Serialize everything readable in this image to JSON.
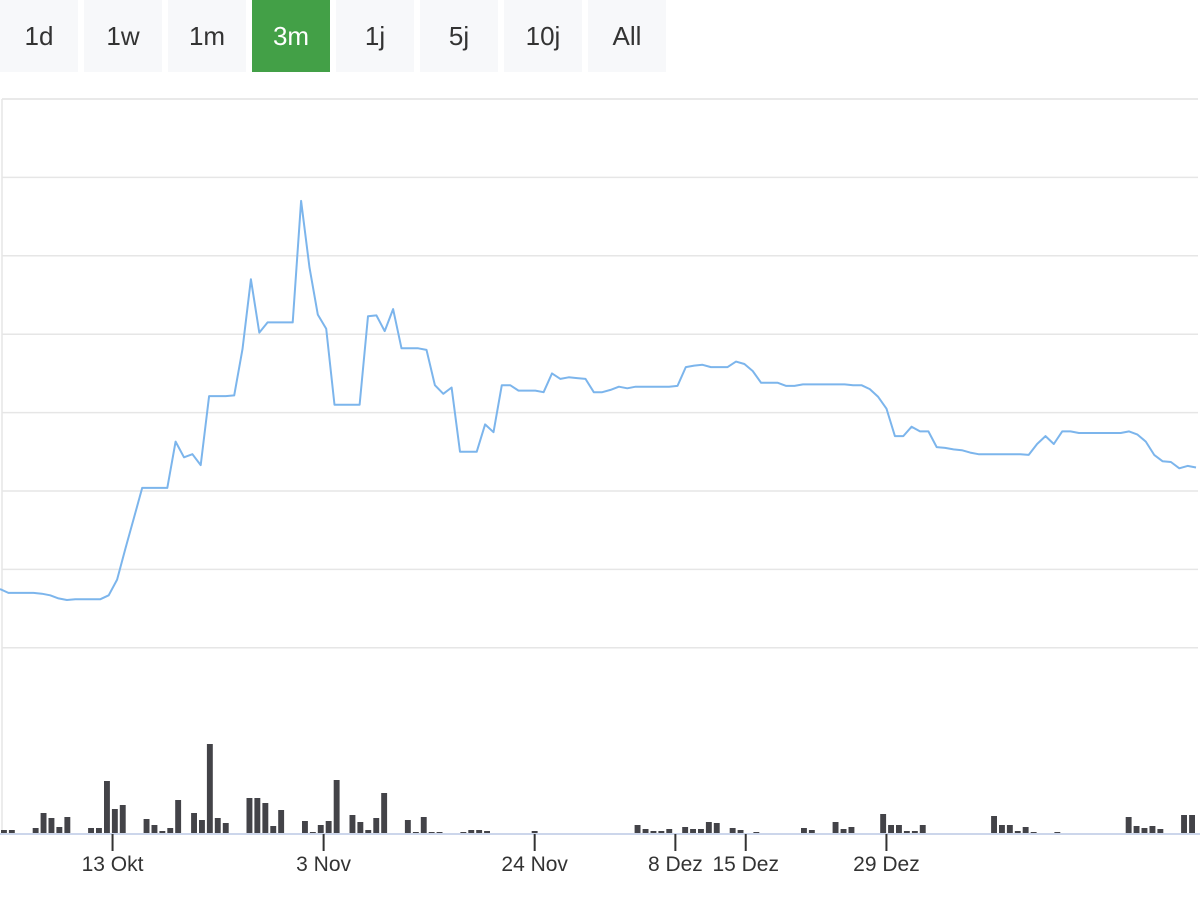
{
  "range_selector": {
    "buttons": [
      {
        "label": "1d",
        "active": false
      },
      {
        "label": "1w",
        "active": false
      },
      {
        "label": "1m",
        "active": false
      },
      {
        "label": "3m",
        "active": true
      },
      {
        "label": "1j",
        "active": false
      },
      {
        "label": "5j",
        "active": false
      },
      {
        "label": "10j",
        "active": false
      },
      {
        "label": "All",
        "active": false
      }
    ],
    "active_color": "#43a047"
  },
  "chart_data": {
    "type": "line",
    "title": "",
    "xlabel": "",
    "ylabel": "",
    "grid": true,
    "line_color": "#7cb5ec",
    "volume_color": "#434348",
    "x_ticks": [
      {
        "label": "13 Okt",
        "day": 11
      },
      {
        "label": "3 Nov",
        "day": 32
      },
      {
        "label": "24 Nov",
        "day": 53
      },
      {
        "label": "8 Dez",
        "day": 67
      },
      {
        "label": "15 Dez",
        "day": 74
      },
      {
        "label": "29 Dez",
        "day": 88
      }
    ],
    "x_range": [
      0,
      119
    ],
    "y_range": [
      0,
      7.5
    ],
    "series": [
      {
        "type": "line",
        "values": [
          1.25,
          1.2,
          1.2,
          1.2,
          1.2,
          1.19,
          1.17,
          1.13,
          1.11,
          1.12,
          1.12,
          1.12,
          1.12,
          1.17,
          1.37,
          1.77,
          2.15,
          2.54,
          2.54,
          2.54,
          2.54,
          3.13,
          2.93,
          2.97,
          2.83,
          3.71,
          3.71,
          3.71,
          3.72,
          4.31,
          5.2,
          4.52,
          4.65,
          4.65,
          4.65,
          4.65,
          6.2,
          5.35,
          4.75,
          4.57,
          3.6,
          3.6,
          3.6,
          3.6,
          4.73,
          4.74,
          4.54,
          4.82,
          4.32,
          4.32,
          4.32,
          4.3,
          3.85,
          3.74,
          3.82,
          3.0,
          3.0,
          3.0,
          3.35,
          3.25,
          3.85,
          3.85,
          3.78,
          3.78,
          3.78,
          3.76,
          4.0,
          3.93,
          3.95,
          3.94,
          3.93,
          3.76,
          3.76,
          3.79,
          3.83,
          3.81,
          3.83,
          3.83,
          3.83,
          3.83,
          3.83,
          3.84,
          4.08,
          4.1,
          4.11,
          4.08,
          4.08,
          4.08,
          4.15,
          4.12,
          4.03,
          3.88,
          3.88,
          3.88,
          3.84,
          3.84,
          3.86,
          3.86,
          3.86,
          3.86,
          3.86,
          3.86,
          3.85,
          3.85,
          3.8,
          3.7,
          3.55,
          3.2,
          3.2,
          3.32,
          3.26,
          3.26,
          3.06,
          3.05,
          3.03,
          3.02,
          2.99,
          2.97,
          2.97,
          2.97,
          2.97,
          2.97,
          2.97,
          2.96,
          3.1,
          3.2,
          3.1,
          3.26,
          3.26,
          3.24,
          3.24,
          3.24,
          3.24,
          3.24,
          3.24,
          3.26,
          3.22,
          3.13,
          2.96,
          2.88,
          2.87,
          2.79,
          2.82,
          2.8
        ]
      },
      {
        "type": "bar",
        "name": "volume",
        "y_range": [
          0,
          110
        ],
        "values": [
          3,
          3,
          0,
          0,
          5,
          20,
          15,
          6,
          16,
          0,
          0,
          5,
          5,
          52,
          24,
          28,
          0,
          0,
          14,
          8,
          2,
          5,
          33,
          0,
          20,
          13,
          89,
          15,
          10,
          0,
          0,
          35,
          35,
          30,
          7,
          23,
          0,
          0,
          12,
          1,
          8,
          12,
          53,
          0,
          18,
          11,
          3,
          15,
          40,
          0,
          0,
          13,
          1,
          16,
          1,
          1,
          0,
          0,
          1,
          3,
          3,
          2,
          0,
          0,
          0,
          0,
          0,
          2,
          0,
          0,
          0,
          0,
          0,
          0,
          0,
          0,
          0,
          0,
          0,
          0,
          8,
          4,
          2,
          2,
          4,
          0,
          6,
          4,
          4,
          11,
          10,
          0,
          5,
          3,
          0,
          1,
          0,
          0,
          0,
          0,
          0,
          5,
          3,
          0,
          0,
          11,
          4,
          6,
          0,
          0,
          0,
          19,
          8,
          8,
          2,
          2,
          8,
          0,
          0,
          0,
          0,
          0,
          0,
          0,
          0,
          17,
          8,
          8,
          2,
          6,
          1,
          0,
          0,
          1,
          0,
          0,
          0,
          0,
          0,
          0,
          0,
          0,
          16,
          7,
          5,
          7,
          4,
          0,
          0,
          18,
          18
        ]
      }
    ]
  }
}
